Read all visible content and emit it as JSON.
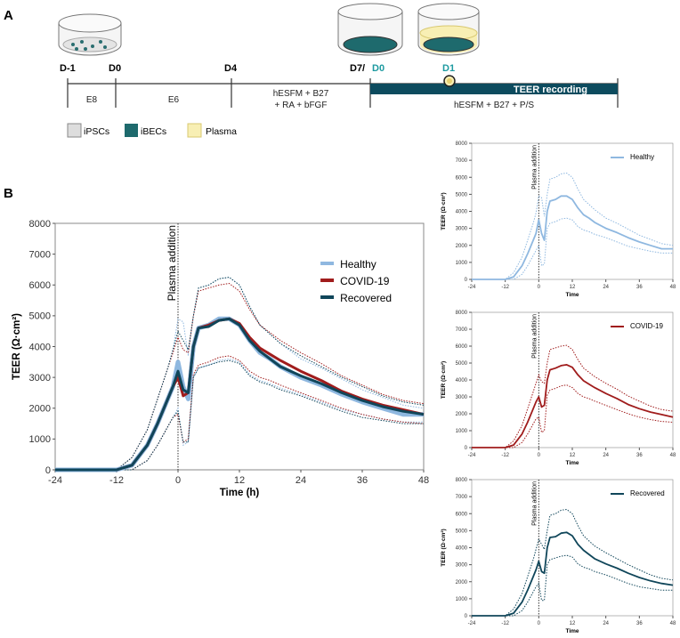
{
  "panel_a": {
    "label": "A",
    "days": [
      "D-1",
      "D0",
      "D4",
      "D7/",
      "D0",
      "D1"
    ],
    "stages": [
      "E8",
      "E6",
      "hESFM + B27",
      "+ RA + bFGF",
      "hESFM + B27 + P/S"
    ],
    "bar_label": "TEER recording",
    "legend": [
      "iPSCs",
      "iBECs",
      "Plasma"
    ],
    "colors": {
      "teal": "#0d4b5e",
      "accent": "#1d9aa0",
      "plasma": "#f8efb4"
    }
  },
  "panel_b": {
    "label": "B"
  },
  "chart_data": [
    {
      "type": "line",
      "title": "",
      "xlabel": "Time (h)",
      "ylabel": "TEER (Ω·cm²)",
      "xlim": [
        -24,
        48
      ],
      "ylim": [
        0,
        8000
      ],
      "xticks": [
        -24,
        -12,
        0,
        12,
        24,
        36,
        48
      ],
      "yticks": [
        0,
        1000,
        2000,
        3000,
        4000,
        5000,
        6000,
        7000,
        8000
      ],
      "annotation": "Plasma addition",
      "legend": "top-right",
      "x": [
        -24,
        -12,
        -9,
        -6,
        -4,
        -2,
        -1,
        0,
        1,
        2,
        3,
        4,
        6,
        8,
        10,
        12,
        14,
        16,
        18,
        20,
        24,
        28,
        32,
        36,
        40,
        44,
        48
      ],
      "series": [
        {
          "name": "Healthy",
          "color": "#8fb8e0",
          "mean": [
            0,
            0,
            150,
            800,
            1500,
            2300,
            2700,
            3500,
            2700,
            2300,
            4000,
            4600,
            4700,
            4900,
            4900,
            4700,
            4200,
            3800,
            3600,
            3350,
            3000,
            2750,
            2450,
            2200,
            2000,
            1800,
            1800
          ],
          "upper": [
            0,
            0,
            400,
            1300,
            2300,
            3300,
            3900,
            4900,
            4800,
            3700,
            5000,
            5900,
            6000,
            6200,
            6250,
            6000,
            5300,
            4700,
            4400,
            4100,
            3600,
            3300,
            2950,
            2600,
            2350,
            2100,
            2000
          ],
          "lower": [
            0,
            0,
            0,
            300,
            800,
            1400,
            1700,
            2000,
            800,
            900,
            3000,
            3300,
            3400,
            3550,
            3600,
            3500,
            3100,
            2900,
            2800,
            2650,
            2450,
            2200,
            1950,
            1800,
            1650,
            1550,
            1550
          ]
        },
        {
          "name": "COVID-19",
          "color": "#a01c1c",
          "mean": [
            0,
            0,
            150,
            800,
            1500,
            2300,
            2700,
            3000,
            2400,
            2500,
            4000,
            4600,
            4700,
            4850,
            4900,
            4750,
            4300,
            3950,
            3750,
            3550,
            3200,
            2900,
            2550,
            2300,
            2100,
            1950,
            1800
          ],
          "upper": [
            0,
            0,
            400,
            1300,
            2300,
            3300,
            3800,
            4300,
            3900,
            3800,
            5000,
            5800,
            5900,
            6000,
            6050,
            5800,
            5200,
            4700,
            4450,
            4200,
            3800,
            3450,
            3050,
            2750,
            2450,
            2250,
            2150
          ],
          "lower": [
            0,
            0,
            0,
            300,
            800,
            1400,
            1700,
            1800,
            900,
            1000,
            3100,
            3400,
            3500,
            3650,
            3700,
            3550,
            3200,
            3000,
            2900,
            2750,
            2500,
            2250,
            2000,
            1800,
            1650,
            1550,
            1500
          ]
        },
        {
          "name": "Recovered",
          "color": "#10465a",
          "mean": [
            0,
            0,
            150,
            800,
            1500,
            2300,
            2700,
            3200,
            2600,
            2500,
            4000,
            4600,
            4650,
            4850,
            4900,
            4700,
            4200,
            3850,
            3600,
            3350,
            3050,
            2800,
            2500,
            2250,
            2050,
            1900,
            1800
          ],
          "upper": [
            0,
            0,
            400,
            1300,
            2300,
            3300,
            3900,
            4500,
            4200,
            3900,
            5000,
            5900,
            6000,
            6200,
            6250,
            6000,
            5300,
            4700,
            4400,
            4100,
            3700,
            3350,
            3000,
            2700,
            2400,
            2200,
            2100
          ],
          "lower": [
            0,
            0,
            0,
            300,
            800,
            1400,
            1700,
            1900,
            900,
            900,
            3000,
            3300,
            3400,
            3500,
            3550,
            3450,
            3050,
            2850,
            2750,
            2600,
            2400,
            2150,
            1900,
            1700,
            1600,
            1500,
            1500
          ]
        }
      ]
    },
    {
      "type": "line",
      "panel": "Healthy",
      "xlabel": "Time",
      "ylabel": "TEER (Ω·cm²)",
      "xlim": [
        -24,
        48
      ],
      "ylim": [
        0,
        8000
      ],
      "annotation": "Plasma addition",
      "legend": "top-right",
      "series_ref": 0
    },
    {
      "type": "line",
      "panel": "COVID-19",
      "xlabel": "Time",
      "ylabel": "TEER (Ω·cm²)",
      "xlim": [
        -24,
        48
      ],
      "ylim": [
        0,
        8000
      ],
      "annotation": "Plasma addition",
      "legend": "top-right",
      "series_ref": 1
    },
    {
      "type": "line",
      "panel": "Recovered",
      "xlabel": "Time",
      "ylabel": "TEER (Ω·cm²)",
      "xlim": [
        -24,
        48
      ],
      "ylim": [
        0,
        8000
      ],
      "annotation": "Plasma addition",
      "legend": "top-right",
      "series_ref": 2
    }
  ]
}
